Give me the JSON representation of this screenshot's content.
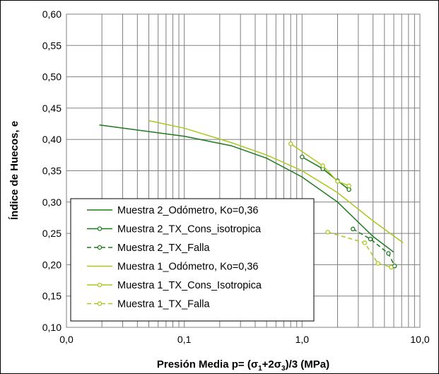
{
  "chart_data": {
    "type": "line",
    "title": "",
    "xlabel_parts": [
      "Presión Media p= (σ",
      "1",
      "+2σ",
      "3",
      ")/3 (MPa)"
    ],
    "ylabel": "Índice de Huecos, e",
    "x_scale": "log",
    "xlim": [
      0.01,
      10
    ],
    "ylim": [
      0.1,
      0.6
    ],
    "x_ticks": [
      0.01,
      0.1,
      1,
      10
    ],
    "x_tick_labels": [
      "0,0",
      "0,1",
      "1,0",
      "10,0"
    ],
    "y_ticks": [
      0.1,
      0.15,
      0.2,
      0.25,
      0.3,
      0.35,
      0.4,
      0.45,
      0.5,
      0.55,
      0.6
    ],
    "y_tick_labels": [
      "0,10",
      "0,15",
      "0,20",
      "0,25",
      "0,30",
      "0,35",
      "0,40",
      "0,45",
      "0,50",
      "0,55",
      "0,60"
    ],
    "grid": true,
    "legend_position": "bottom-left",
    "series": [
      {
        "name": "Muestra 2_Odómetro, Ko=0,36",
        "color": "#1b7a1b",
        "style": "solid",
        "marker": "none",
        "x": [
          0.019,
          0.1,
          0.25,
          0.5,
          1.0,
          2.0,
          4.0,
          6.0
        ],
        "y": [
          0.423,
          0.405,
          0.39,
          0.37,
          0.34,
          0.3,
          0.245,
          0.22
        ]
      },
      {
        "name": "Muestra 2_TX_Cons_isotropica",
        "color": "#1b7a1b",
        "style": "solid",
        "marker": "circle",
        "x": [
          1.0,
          1.5,
          2.0,
          2.5
        ],
        "y": [
          0.372,
          0.353,
          0.334,
          0.32
        ]
      },
      {
        "name": "Muestra 2_TX_Falla",
        "color": "#1b7a1b",
        "style": "dashed",
        "marker": "circle",
        "x": [
          2.7,
          3.8,
          5.4,
          6.1
        ],
        "y": [
          0.257,
          0.241,
          0.218,
          0.198
        ]
      },
      {
        "name": "Muestra 1_Odómetro, Ko=0,36",
        "color": "#a8c81e",
        "style": "solid",
        "marker": "none",
        "x": [
          0.05,
          0.1,
          0.25,
          0.5,
          1.0,
          2.0,
          4.0,
          7.2
        ],
        "y": [
          0.43,
          0.418,
          0.395,
          0.375,
          0.35,
          0.315,
          0.27,
          0.235
        ]
      },
      {
        "name": "Muestra 1_TX_Cons_Isotropica",
        "color": "#a8c81e",
        "style": "solid",
        "marker": "circle",
        "x": [
          0.8,
          1.5,
          2.0,
          2.5
        ],
        "y": [
          0.393,
          0.358,
          0.333,
          0.326
        ]
      },
      {
        "name": "Muestra 1_TX_Falla",
        "color": "#a8c81e",
        "style": "dashed",
        "marker": "circle",
        "x": [
          1.65,
          3.4,
          4.4,
          5.7
        ],
        "y": [
          0.252,
          0.235,
          0.202,
          0.196
        ]
      }
    ]
  }
}
